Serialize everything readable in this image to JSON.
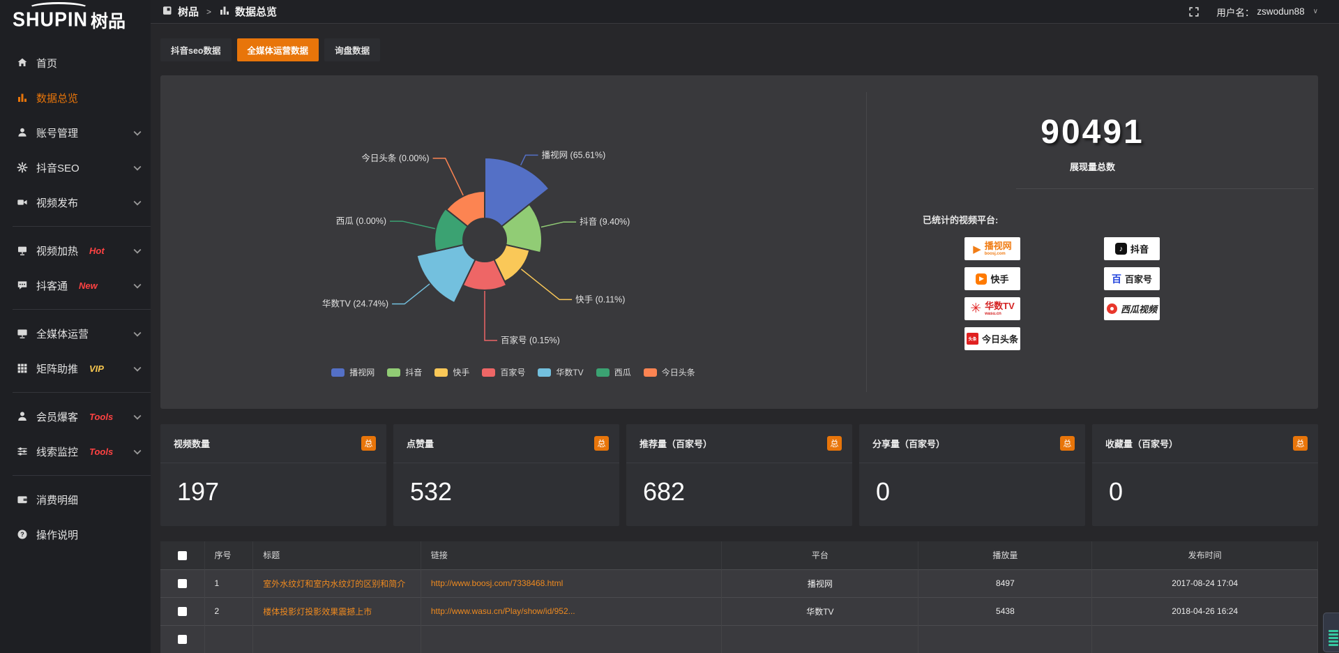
{
  "logo": {
    "text": "SHUPIN",
    "suffix": "树品"
  },
  "topbar": {
    "breadcrumb": {
      "root": "树品",
      "separator": ">",
      "current": "数据总览"
    },
    "username_label": "用户名：",
    "username": "zswodun88",
    "chevron": "∨"
  },
  "sidebar": {
    "items": [
      {
        "label": "首页",
        "icon": "home-icon",
        "badge": "",
        "badge_color": "",
        "chevron": false,
        "active": false,
        "divider_after": false
      },
      {
        "label": "数据总览",
        "icon": "bar-chart-icon",
        "badge": "",
        "badge_color": "",
        "chevron": false,
        "active": true,
        "divider_after": false
      },
      {
        "label": "账号管理",
        "icon": "user-icon",
        "badge": "",
        "badge_color": "",
        "chevron": true,
        "active": false,
        "divider_after": false
      },
      {
        "label": "抖音SEO",
        "icon": "gear-icon",
        "badge": "",
        "badge_color": "",
        "chevron": true,
        "active": false,
        "divider_after": false
      },
      {
        "label": "视频发布",
        "icon": "video-camera-icon",
        "badge": "",
        "badge_color": "",
        "chevron": true,
        "active": false,
        "divider_after": true
      },
      {
        "label": "视频加热",
        "icon": "screen-icon",
        "badge": "Hot",
        "badge_color": "#ff4242",
        "chevron": true,
        "active": false,
        "divider_after": false
      },
      {
        "label": "抖客通",
        "icon": "chat-icon",
        "badge": "New",
        "badge_color": "#ff4242",
        "chevron": true,
        "active": false,
        "divider_after": true
      },
      {
        "label": "全媒体运营",
        "icon": "monitor-icon",
        "badge": "",
        "badge_color": "",
        "chevron": true,
        "active": false,
        "divider_after": false
      },
      {
        "label": "矩阵助推",
        "icon": "grid-icon",
        "badge": "VIP",
        "badge_color": "#f6c64f",
        "chevron": true,
        "active": false,
        "divider_after": true
      },
      {
        "label": "会员爆客",
        "icon": "member-icon",
        "badge": "Tools",
        "badge_color": "#ff4242",
        "chevron": true,
        "active": false,
        "divider_after": false
      },
      {
        "label": "线索监控",
        "icon": "sliders-icon",
        "badge": "Tools",
        "badge_color": "#ff4242",
        "chevron": true,
        "active": false,
        "divider_after": true
      },
      {
        "label": "消费明细",
        "icon": "wallet-icon",
        "badge": "",
        "badge_color": "",
        "chevron": false,
        "active": false,
        "divider_after": false
      },
      {
        "label": "操作说明",
        "icon": "question-icon",
        "badge": "",
        "badge_color": "",
        "chevron": false,
        "active": false,
        "divider_after": false
      }
    ]
  },
  "tabs": [
    {
      "label": "抖音seo数据",
      "active": false
    },
    {
      "label": "全媒体运营数据",
      "active": true
    },
    {
      "label": "询盘数据",
      "active": false
    }
  ],
  "chart_data": {
    "type": "pie",
    "subtype": "nightingale-rose",
    "title": "",
    "categories": [
      "播视网",
      "抖音",
      "快手",
      "百家号",
      "华数TV",
      "西瓜",
      "今日头条"
    ],
    "values_percent": [
      65.61,
      9.4,
      0.11,
      0.15,
      24.74,
      0.0,
      0.0
    ],
    "labels": [
      "播视网 (65.61%)",
      "抖音 (9.40%)",
      "快手 (0.11%)",
      "百家号 (0.15%)",
      "华数TV (24.74%)",
      "西瓜 (0.00%)",
      "今日头条 (0.00%)"
    ],
    "colors": [
      "#5470c6",
      "#91cc75",
      "#fac858",
      "#ee6666",
      "#73c0de",
      "#3ba272",
      "#fc8452"
    ],
    "legend_position": "bottom",
    "legend_entries": [
      "播视网",
      "抖音",
      "快手",
      "百家号",
      "华数TV",
      "西瓜",
      "今日头条"
    ],
    "layout": {
      "inner_radius": 31,
      "outer_radii": [
        118,
        82,
        66,
        72,
        100,
        72,
        70
      ],
      "label_line_lengths": [
        17,
        34,
        71,
        72,
        47,
        49,
        60
      ]
    }
  },
  "summary": {
    "total_value": "90491",
    "total_label": "展现量总数",
    "platforms_label": "已统计的视频平台:",
    "platforms": [
      {
        "name": "播视网",
        "sub": "boosj.com",
        "side": "left",
        "style": "boosj",
        "name_color": "#f07d16"
      },
      {
        "name": "快手",
        "sub": "",
        "side": "left",
        "style": "kuaishou",
        "name_color": "#222222"
      },
      {
        "name": "华数TV",
        "sub": "wasu.cn",
        "side": "left",
        "style": "wasu",
        "name_color": "#d42222"
      },
      {
        "name": "今日头条",
        "sub": "",
        "side": "left",
        "style": "toutiao",
        "name_color": "#222222"
      },
      {
        "name": "抖音",
        "sub": "",
        "side": "right",
        "style": "douyin",
        "name_color": "#111111"
      },
      {
        "name": "百家号",
        "sub": "",
        "side": "right",
        "style": "baijia",
        "name_color": "#222222"
      },
      {
        "name": "西瓜视频",
        "sub": "",
        "side": "right",
        "style": "xigua",
        "name_color": "#222222"
      }
    ]
  },
  "stat_cards": [
    {
      "label": "视频数量",
      "badge": "总",
      "value": "197"
    },
    {
      "label": "点赞量",
      "badge": "总",
      "value": "532"
    },
    {
      "label": "推荐量（百家号）",
      "badge": "总",
      "value": "682"
    },
    {
      "label": "分享量（百家号）",
      "badge": "总",
      "value": "0"
    },
    {
      "label": "收藏量（百家号）",
      "badge": "总",
      "value": "0"
    }
  ],
  "table": {
    "headers": [
      "序号",
      "标题",
      "链接",
      "平台",
      "播放量",
      "发布时间"
    ],
    "rows": [
      {
        "index": "1",
        "title": "室外水纹灯和室内水纹灯的区别和简介",
        "link": "http://www.boosj.com/7338468.html",
        "platform": "播视网",
        "views": "8497",
        "time": "2017-08-24 17:04"
      },
      {
        "index": "2",
        "title": "楼体投影灯投影效果震撼上市",
        "link": "http://www.wasu.cn/Play/show/id/952...",
        "platform": "华数TV",
        "views": "5438",
        "time": "2018-04-26 16:24"
      },
      {
        "index": "",
        "title": "",
        "link": "",
        "platform": "",
        "views": "",
        "time": ""
      }
    ]
  },
  "colors": {
    "accent": "#e8750a",
    "link": "#ef8a1f",
    "sidebar_bg": "#1e1f23",
    "panel_bg": "#39393c",
    "card_bg": "#2f3034"
  }
}
